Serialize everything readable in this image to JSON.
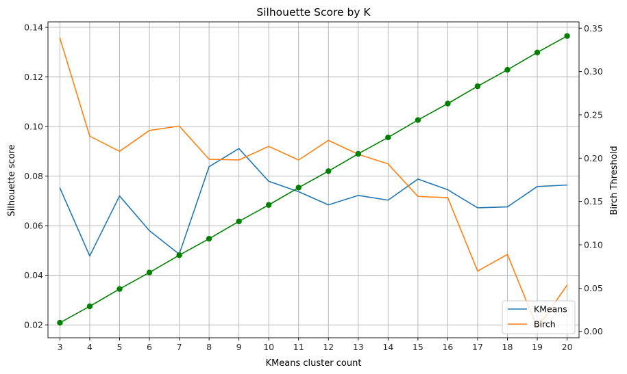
{
  "chart_data": {
    "type": "line",
    "title": "Silhouette Score by K",
    "xlabel": "KMeans cluster count",
    "ylabel": "Silhouette score",
    "ylabel_right": "Birch Threshold",
    "x": [
      3,
      4,
      5,
      6,
      7,
      8,
      9,
      10,
      11,
      12,
      13,
      14,
      15,
      16,
      17,
      18,
      19,
      20
    ],
    "xlim": [
      2.6,
      20.4
    ],
    "ylim": [
      0.0148,
      0.1422
    ],
    "ylim_right": [
      -0.0073,
      0.3573
    ],
    "yticks": [
      0.02,
      0.04,
      0.06,
      0.08,
      0.1,
      0.12,
      0.14
    ],
    "ytick_labels": [
      "0.02",
      "0.04",
      "0.06",
      "0.08",
      "0.10",
      "0.12",
      "0.14"
    ],
    "yticks_right": [
      0.0,
      0.05,
      0.1,
      0.15,
      0.2,
      0.25,
      0.3,
      0.35
    ],
    "ytick_labels_right": [
      "0.00",
      "0.05",
      "0.10",
      "0.15",
      "0.20",
      "0.25",
      "0.30",
      "0.35"
    ],
    "grid": true,
    "legend_position": "lower-right",
    "series": [
      {
        "name": "KMeans",
        "axis": "left",
        "color": "#1f77b4",
        "marker": false,
        "values": [
          0.0752,
          0.0478,
          0.072,
          0.058,
          0.0485,
          0.0838,
          0.0911,
          0.0779,
          0.0737,
          0.0684,
          0.0722,
          0.0703,
          0.0788,
          0.0745,
          0.0672,
          0.0676,
          0.0758,
          0.0764
        ]
      },
      {
        "name": "Birch",
        "axis": "left",
        "color": "#ff7f0e",
        "marker": false,
        "values": [
          0.1357,
          0.0961,
          0.09,
          0.0984,
          0.1002,
          0.0868,
          0.0865,
          0.092,
          0.0865,
          0.0944,
          0.0888,
          0.0849,
          0.0718,
          0.0713,
          0.0417,
          0.0484,
          0.0188,
          0.036
        ]
      },
      {
        "name": "",
        "axis": "right",
        "color": "#008000",
        "marker": true,
        "values": [
          0.01,
          0.029,
          0.049,
          0.068,
          0.088,
          0.107,
          0.127,
          0.146,
          0.166,
          0.185,
          0.205,
          0.224,
          0.244,
          0.263,
          0.283,
          0.302,
          0.322,
          0.341
        ]
      }
    ]
  }
}
